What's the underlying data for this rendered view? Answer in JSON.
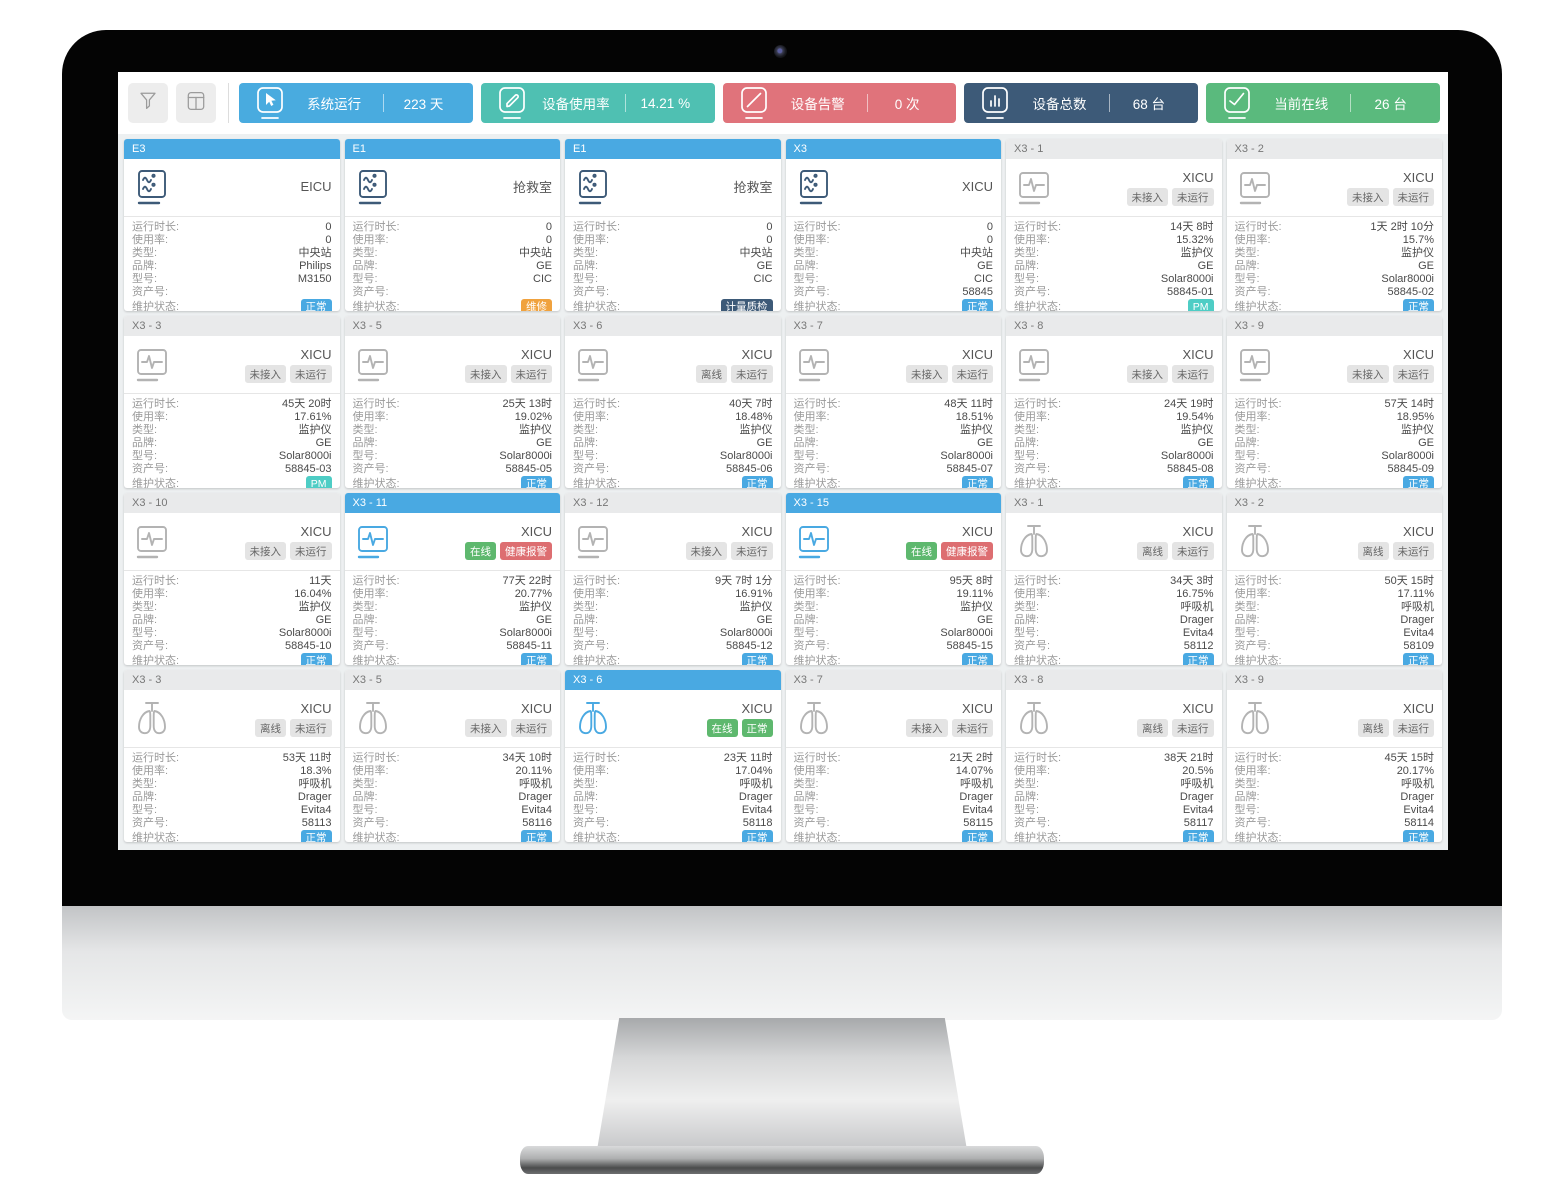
{
  "colors": {
    "blue": "#49a9e2",
    "teal": "#4ecdc5",
    "green": "#5eb86e",
    "red": "#dd6e71",
    "orange": "#f0a23e",
    "navy": "#3d5a78",
    "gray": "#e4e4e4"
  },
  "toolbar": {
    "buttons": [
      {
        "key": "filter",
        "icon": "funnel-icon"
      },
      {
        "key": "layout",
        "icon": "layout-icon"
      }
    ],
    "stats": [
      {
        "key": "system-uptime",
        "icon": "cursor",
        "label": "系统运行",
        "value": "223 天",
        "color": "#49abdf"
      },
      {
        "key": "usage-rate",
        "icon": "pen",
        "label": "设备使用率",
        "value": "14.21 %",
        "color": "#4fc0b2"
      },
      {
        "key": "alerts",
        "icon": "alarm",
        "label": "设备告警",
        "value": "0 次",
        "color": "#e0737b"
      },
      {
        "key": "device-total",
        "icon": "chart",
        "label": "设备总数",
        "value": "68 台",
        "color": "#3d5a78"
      },
      {
        "key": "online-count",
        "icon": "online",
        "label": "当前在线",
        "value": "26 台",
        "color": "#5aba7d"
      }
    ]
  },
  "card_labels": {
    "runtime": "运行时长:",
    "usage": "使用率:",
    "type": "类型:",
    "brand": "品牌:",
    "model": "型号:",
    "asset": "资产号:",
    "maintenance": "维护状态:"
  },
  "detail_order": [
    "runtime",
    "usage",
    "type",
    "brand",
    "model",
    "asset"
  ],
  "cards": [
    {
      "id": "E3",
      "header": "blue",
      "icon": "central",
      "icon_color": "navy",
      "location": "EICU",
      "badges": [],
      "details": {
        "runtime": "0",
        "usage": "0",
        "type": "中央站",
        "brand": "Philips",
        "model": "M3150",
        "asset": ""
      },
      "maintenance": {
        "label": "正常",
        "style": "blue"
      }
    },
    {
      "id": "E1",
      "header": "blue",
      "icon": "central",
      "icon_color": "navy",
      "location": "抢救室",
      "badges": [],
      "details": {
        "runtime": "0",
        "usage": "0",
        "type": "中央站",
        "brand": "GE",
        "model": "CIC",
        "asset": ""
      },
      "maintenance": {
        "label": "维修",
        "style": "orange"
      }
    },
    {
      "id": "E1",
      "header": "blue",
      "icon": "central",
      "icon_color": "navy",
      "location": "抢救室",
      "badges": [],
      "details": {
        "runtime": "0",
        "usage": "0",
        "type": "中央站",
        "brand": "GE",
        "model": "CIC",
        "asset": ""
      },
      "maintenance": {
        "label": "计量质检",
        "style": "navy"
      }
    },
    {
      "id": "X3",
      "header": "blue",
      "icon": "central",
      "icon_color": "navy",
      "location": "XICU",
      "badges": [],
      "details": {
        "runtime": "0",
        "usage": "0",
        "type": "中央站",
        "brand": "GE",
        "model": "CIC",
        "asset": "58845"
      },
      "maintenance": {
        "label": "正常",
        "style": "blue"
      }
    },
    {
      "id": "X3 - 1",
      "header": "gray",
      "icon": "monitor",
      "icon_color": "gray",
      "location": "XICU",
      "badges": [
        {
          "label": "未接入",
          "style": "gray"
        },
        {
          "label": "未运行",
          "style": "gray"
        }
      ],
      "details": {
        "runtime": "14天 8时",
        "usage": "15.32%",
        "type": "监护仪",
        "brand": "GE",
        "model": "Solar8000i",
        "asset": "58845-01"
      },
      "maintenance": {
        "label": "PM",
        "style": "teal"
      }
    },
    {
      "id": "X3 - 2",
      "header": "gray",
      "icon": "monitor",
      "icon_color": "gray",
      "location": "XICU",
      "badges": [
        {
          "label": "未接入",
          "style": "gray"
        },
        {
          "label": "未运行",
          "style": "gray"
        }
      ],
      "details": {
        "runtime": "1天 2时 10分",
        "usage": "15.7%",
        "type": "监护仪",
        "brand": "GE",
        "model": "Solar8000i",
        "asset": "58845-02"
      },
      "maintenance": {
        "label": "正常",
        "style": "blue"
      }
    },
    {
      "id": "X3 - 3",
      "header": "gray",
      "icon": "monitor",
      "icon_color": "gray",
      "location": "XICU",
      "badges": [
        {
          "label": "未接入",
          "style": "gray"
        },
        {
          "label": "未运行",
          "style": "gray"
        }
      ],
      "details": {
        "runtime": "45天 20时",
        "usage": "17.61%",
        "type": "监护仪",
        "brand": "GE",
        "model": "Solar8000i",
        "asset": "58845-03"
      },
      "maintenance": {
        "label": "PM",
        "style": "teal"
      }
    },
    {
      "id": "X3 - 5",
      "header": "gray",
      "icon": "monitor",
      "icon_color": "gray",
      "location": "XICU",
      "badges": [
        {
          "label": "未接入",
          "style": "gray"
        },
        {
          "label": "未运行",
          "style": "gray"
        }
      ],
      "details": {
        "runtime": "25天 13时",
        "usage": "19.02%",
        "type": "监护仪",
        "brand": "GE",
        "model": "Solar8000i",
        "asset": "58845-05"
      },
      "maintenance": {
        "label": "正常",
        "style": "blue"
      }
    },
    {
      "id": "X3 - 6",
      "header": "gray",
      "icon": "monitor",
      "icon_color": "gray",
      "location": "XICU",
      "badges": [
        {
          "label": "离线",
          "style": "gray"
        },
        {
          "label": "未运行",
          "style": "gray"
        }
      ],
      "details": {
        "runtime": "40天 7时",
        "usage": "18.48%",
        "type": "监护仪",
        "brand": "GE",
        "model": "Solar8000i",
        "asset": "58845-06"
      },
      "maintenance": {
        "label": "正常",
        "style": "blue"
      }
    },
    {
      "id": "X3 - 7",
      "header": "gray",
      "icon": "monitor",
      "icon_color": "gray",
      "location": "XICU",
      "badges": [
        {
          "label": "未接入",
          "style": "gray"
        },
        {
          "label": "未运行",
          "style": "gray"
        }
      ],
      "details": {
        "runtime": "48天 11时",
        "usage": "18.51%",
        "type": "监护仪",
        "brand": "GE",
        "model": "Solar8000i",
        "asset": "58845-07"
      },
      "maintenance": {
        "label": "正常",
        "style": "blue"
      }
    },
    {
      "id": "X3 - 8",
      "header": "gray",
      "icon": "monitor",
      "icon_color": "gray",
      "location": "XICU",
      "badges": [
        {
          "label": "未接入",
          "style": "gray"
        },
        {
          "label": "未运行",
          "style": "gray"
        }
      ],
      "details": {
        "runtime": "24天 19时",
        "usage": "19.54%",
        "type": "监护仪",
        "brand": "GE",
        "model": "Solar8000i",
        "asset": "58845-08"
      },
      "maintenance": {
        "label": "正常",
        "style": "blue"
      }
    },
    {
      "id": "X3 - 9",
      "header": "gray",
      "icon": "monitor",
      "icon_color": "gray",
      "location": "XICU",
      "badges": [
        {
          "label": "未接入",
          "style": "gray"
        },
        {
          "label": "未运行",
          "style": "gray"
        }
      ],
      "details": {
        "runtime": "57天 14时",
        "usage": "18.95%",
        "type": "监护仪",
        "brand": "GE",
        "model": "Solar8000i",
        "asset": "58845-09"
      },
      "maintenance": {
        "label": "正常",
        "style": "blue"
      }
    },
    {
      "id": "X3 - 10",
      "header": "gray",
      "icon": "monitor",
      "icon_color": "gray",
      "location": "XICU",
      "badges": [
        {
          "label": "未接入",
          "style": "gray"
        },
        {
          "label": "未运行",
          "style": "gray"
        }
      ],
      "details": {
        "runtime": "11天",
        "usage": "16.04%",
        "type": "监护仪",
        "brand": "GE",
        "model": "Solar8000i",
        "asset": "58845-10"
      },
      "maintenance": {
        "label": "正常",
        "style": "blue"
      }
    },
    {
      "id": "X3 - 11",
      "header": "blue",
      "icon": "monitor",
      "icon_color": "blue",
      "location": "XICU",
      "badges": [
        {
          "label": "在线",
          "style": "green"
        },
        {
          "label": "健康报警",
          "style": "red"
        }
      ],
      "details": {
        "runtime": "77天 22时",
        "usage": "20.77%",
        "type": "监护仪",
        "brand": "GE",
        "model": "Solar8000i",
        "asset": "58845-11"
      },
      "maintenance": {
        "label": "正常",
        "style": "blue"
      }
    },
    {
      "id": "X3 - 12",
      "header": "gray",
      "icon": "monitor",
      "icon_color": "gray",
      "location": "XICU",
      "badges": [
        {
          "label": "未接入",
          "style": "gray"
        },
        {
          "label": "未运行",
          "style": "gray"
        }
      ],
      "details": {
        "runtime": "9天 7时 1分",
        "usage": "16.91%",
        "type": "监护仪",
        "brand": "GE",
        "model": "Solar8000i",
        "asset": "58845-12"
      },
      "maintenance": {
        "label": "正常",
        "style": "blue"
      }
    },
    {
      "id": "X3 - 15",
      "header": "blue",
      "icon": "monitor",
      "icon_color": "blue",
      "location": "XICU",
      "badges": [
        {
          "label": "在线",
          "style": "green"
        },
        {
          "label": "健康报警",
          "style": "red"
        }
      ],
      "details": {
        "runtime": "95天 8时",
        "usage": "19.11%",
        "type": "监护仪",
        "brand": "GE",
        "model": "Solar8000i",
        "asset": "58845-15"
      },
      "maintenance": {
        "label": "正常",
        "style": "blue"
      }
    },
    {
      "id": "X3 - 1",
      "header": "gray",
      "icon": "lungs",
      "icon_color": "gray",
      "location": "XICU",
      "badges": [
        {
          "label": "离线",
          "style": "gray"
        },
        {
          "label": "未运行",
          "style": "gray"
        }
      ],
      "details": {
        "runtime": "34天 3时",
        "usage": "16.75%",
        "type": "呼吸机",
        "brand": "Drager",
        "model": "Evita4",
        "asset": "58112"
      },
      "maintenance": {
        "label": "正常",
        "style": "blue"
      }
    },
    {
      "id": "X3 - 2",
      "header": "gray",
      "icon": "lungs",
      "icon_color": "gray",
      "location": "XICU",
      "badges": [
        {
          "label": "离线",
          "style": "gray"
        },
        {
          "label": "未运行",
          "style": "gray"
        }
      ],
      "details": {
        "runtime": "50天 15时",
        "usage": "17.11%",
        "type": "呼吸机",
        "brand": "Drager",
        "model": "Evita4",
        "asset": "58109"
      },
      "maintenance": {
        "label": "正常",
        "style": "blue"
      }
    },
    {
      "id": "X3 - 3",
      "header": "gray",
      "icon": "lungs",
      "icon_color": "gray",
      "location": "XICU",
      "badges": [
        {
          "label": "离线",
          "style": "gray"
        },
        {
          "label": "未运行",
          "style": "gray"
        }
      ],
      "details": {
        "runtime": "53天 11时",
        "usage": "18.3%",
        "type": "呼吸机",
        "brand": "Drager",
        "model": "Evita4",
        "asset": "58113"
      },
      "maintenance": {
        "label": "正常",
        "style": "blue"
      }
    },
    {
      "id": "X3 - 5",
      "header": "gray",
      "icon": "lungs",
      "icon_color": "gray",
      "location": "XICU",
      "badges": [
        {
          "label": "未接入",
          "style": "gray"
        },
        {
          "label": "未运行",
          "style": "gray"
        }
      ],
      "details": {
        "runtime": "34天 10时",
        "usage": "20.11%",
        "type": "呼吸机",
        "brand": "Drager",
        "model": "Evita4",
        "asset": "58116"
      },
      "maintenance": {
        "label": "正常",
        "style": "blue"
      }
    },
    {
      "id": "X3 - 6",
      "header": "blue",
      "icon": "lungs",
      "icon_color": "blue",
      "location": "XICU",
      "badges": [
        {
          "label": "在线",
          "style": "green"
        },
        {
          "label": "正常",
          "style": "green"
        }
      ],
      "details": {
        "runtime": "23天 11时",
        "usage": "17.04%",
        "type": "呼吸机",
        "brand": "Drager",
        "model": "Evita4",
        "asset": "58118"
      },
      "maintenance": {
        "label": "正常",
        "style": "blue"
      }
    },
    {
      "id": "X3 - 7",
      "header": "gray",
      "icon": "lungs",
      "icon_color": "gray",
      "location": "XICU",
      "badges": [
        {
          "label": "未接入",
          "style": "gray"
        },
        {
          "label": "未运行",
          "style": "gray"
        }
      ],
      "details": {
        "runtime": "21天 2时",
        "usage": "14.07%",
        "type": "呼吸机",
        "brand": "Drager",
        "model": "Evita4",
        "asset": "58115"
      },
      "maintenance": {
        "label": "正常",
        "style": "blue"
      }
    },
    {
      "id": "X3 - 8",
      "header": "gray",
      "icon": "lungs",
      "icon_color": "gray",
      "location": "XICU",
      "badges": [
        {
          "label": "离线",
          "style": "gray"
        },
        {
          "label": "未运行",
          "style": "gray"
        }
      ],
      "details": {
        "runtime": "38天 21时",
        "usage": "20.5%",
        "type": "呼吸机",
        "brand": "Drager",
        "model": "Evita4",
        "asset": "58117"
      },
      "maintenance": {
        "label": "正常",
        "style": "blue"
      }
    },
    {
      "id": "X3 - 9",
      "header": "gray",
      "icon": "lungs",
      "icon_color": "gray",
      "location": "XICU",
      "badges": [
        {
          "label": "离线",
          "style": "gray"
        },
        {
          "label": "未运行",
          "style": "gray"
        }
      ],
      "details": {
        "runtime": "45天 15时",
        "usage": "20.17%",
        "type": "呼吸机",
        "brand": "Drager",
        "model": "Evita4",
        "asset": "58114"
      },
      "maintenance": {
        "label": "正常",
        "style": "blue"
      }
    }
  ]
}
